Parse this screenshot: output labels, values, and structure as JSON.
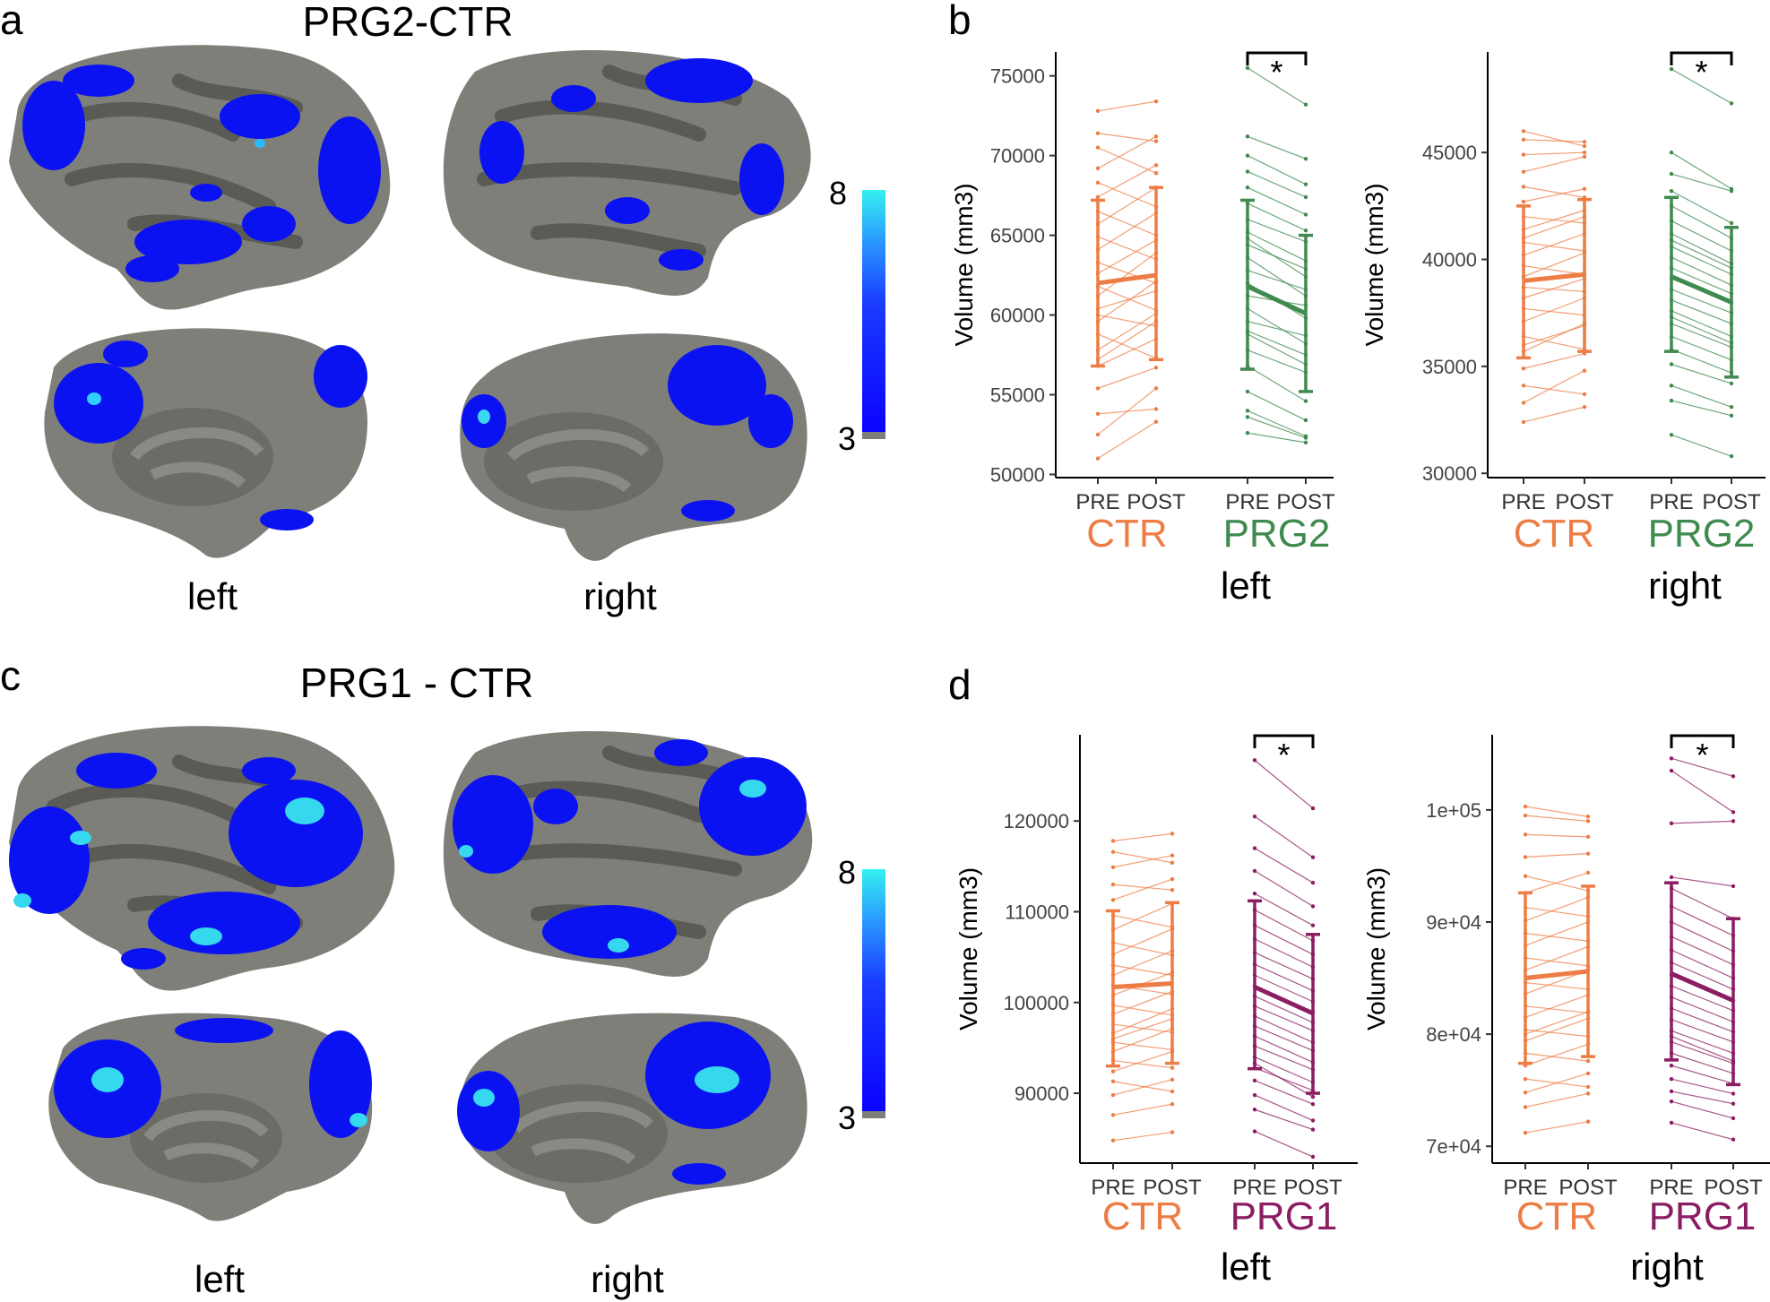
{
  "panels": {
    "a": {
      "letter": "a",
      "title": "PRG2-CTR",
      "hemisphere_labels": [
        "left",
        "right"
      ],
      "colorbar": {
        "max_label": "8",
        "min_label": "3"
      }
    },
    "b": {
      "letter": "b"
    },
    "c": {
      "letter": "c",
      "title": "PRG1 - CTR",
      "hemisphere_labels": [
        "left",
        "right"
      ],
      "colorbar": {
        "max_label": "8",
        "min_label": "3"
      }
    },
    "d": {
      "letter": "d"
    }
  },
  "colors": {
    "ctr": "#ED7D45",
    "prg2": "#3F8A4E",
    "prg1": "#8B1D62",
    "sulcus": "#5f5f5a",
    "gyrus": "#8a8a84",
    "activation": "#0a14f0",
    "activation_peak": "#35e0ee"
  },
  "chart_data": [
    {
      "id": "b-left",
      "type": "line",
      "ylabel": "Volume (mm3)",
      "yticks": [
        "50000",
        "55000",
        "60000",
        "65000",
        "70000",
        "75000"
      ],
      "ytick_values": [
        50000,
        55000,
        60000,
        65000,
        70000,
        75000
      ],
      "ylim": [
        49800,
        76500
      ],
      "x_timepoints": [
        "PRE",
        "POST"
      ],
      "hemisphere": "left",
      "significance": "*",
      "groups": [
        {
          "name": "CTR",
          "color": "#ED7D45",
          "mean": [
            62000,
            62500
          ],
          "sd_low": [
            56800,
            57200
          ],
          "sd_high": [
            67200,
            68000
          ],
          "subjects": [
            [
              51000,
              53300
            ],
            [
              52500,
              55400
            ],
            [
              53800,
              54100
            ],
            [
              55400,
              56700
            ],
            [
              56800,
              58500
            ],
            [
              57800,
              60100
            ],
            [
              58800,
              57300
            ],
            [
              59600,
              62100
            ],
            [
              60400,
              61500
            ],
            [
              61200,
              63900
            ],
            [
              61800,
              60300
            ],
            [
              62600,
              64700
            ],
            [
              63300,
              62000
            ],
            [
              64100,
              66400
            ],
            [
              64900,
              63500
            ],
            [
              65700,
              68000
            ],
            [
              66500,
              65000
            ],
            [
              67400,
              69400
            ],
            [
              68300,
              66800
            ],
            [
              69200,
              71200
            ],
            [
              70500,
              68900
            ],
            [
              71400,
              70900
            ],
            [
              72800,
              73400
            ],
            [
              60000,
              59300
            ],
            [
              57200,
              59600
            ]
          ]
        },
        {
          "name": "PRG2",
          "color": "#3F8A4E",
          "mean": [
            61800,
            60100
          ],
          "sd_low": [
            56600,
            55200
          ],
          "sd_high": [
            67200,
            65000
          ],
          "subjects": [
            [
              52600,
              52000
            ],
            [
              53600,
              52300
            ],
            [
              55200,
              53400
            ],
            [
              56800,
              54600
            ],
            [
              57800,
              56400
            ],
            [
              58800,
              56900
            ],
            [
              59600,
              58700
            ],
            [
              60400,
              58200
            ],
            [
              61200,
              60600
            ],
            [
              62000,
              59800
            ],
            [
              62800,
              61600
            ],
            [
              63600,
              61200
            ],
            [
              64400,
              62900
            ],
            [
              65200,
              63400
            ],
            [
              66000,
              64600
            ],
            [
              67000,
              65300
            ],
            [
              68000,
              66300
            ],
            [
              69000,
              67400
            ],
            [
              70000,
              68200
            ],
            [
              71200,
              69800
            ],
            [
              75500,
              73200
            ],
            [
              54000,
              52400
            ],
            [
              59000,
              57500
            ],
            [
              64800,
              62400
            ]
          ]
        }
      ]
    },
    {
      "id": "b-right",
      "type": "line",
      "ylabel": "Volume (mm3)",
      "yticks": [
        "30000",
        "35000",
        "40000",
        "45000"
      ],
      "ytick_values": [
        30000,
        35000,
        40000,
        45000
      ],
      "ylim": [
        29800,
        49700
      ],
      "x_timepoints": [
        "PRE",
        "POST"
      ],
      "hemisphere": "right",
      "significance": "*",
      "groups": [
        {
          "name": "CTR",
          "color": "#ED7D45",
          "mean": [
            39000,
            39300
          ],
          "sd_low": [
            35400,
            35700
          ],
          "sd_high": [
            42500,
            42800
          ],
          "subjects": [
            [
              32400,
              33100
            ],
            [
              33300,
              34800
            ],
            [
              34100,
              33700
            ],
            [
              34900,
              35600
            ],
            [
              35700,
              37000
            ],
            [
              36400,
              35800
            ],
            [
              37100,
              38200
            ],
            [
              37700,
              37400
            ],
            [
              38200,
              39100
            ],
            [
              38700,
              38500
            ],
            [
              39200,
              40300
            ],
            [
              39700,
              39300
            ],
            [
              40200,
              41200
            ],
            [
              40800,
              40400
            ],
            [
              41400,
              42300
            ],
            [
              42000,
              41700
            ],
            [
              42700,
              43300
            ],
            [
              43400,
              42900
            ],
            [
              44100,
              44800
            ],
            [
              44900,
              45000
            ],
            [
              45600,
              45500
            ],
            [
              46000,
              45300
            ],
            [
              36000,
              36900
            ],
            [
              41000,
              42000
            ]
          ]
        },
        {
          "name": "PRG2",
          "color": "#3F8A4E",
          "mean": [
            39200,
            38000
          ],
          "sd_low": [
            35700,
            34500
          ],
          "sd_high": [
            42900,
            41500
          ],
          "subjects": [
            [
              31800,
              30800
            ],
            [
              33400,
              32700
            ],
            [
              34100,
              33100
            ],
            [
              35100,
              34200
            ],
            [
              35800,
              34700
            ],
            [
              36400,
              35300
            ],
            [
              37000,
              35900
            ],
            [
              37600,
              36400
            ],
            [
              38100,
              37000
            ],
            [
              38600,
              37500
            ],
            [
              39100,
              38000
            ],
            [
              39600,
              38400
            ],
            [
              40100,
              38800
            ],
            [
              40600,
              39300
            ],
            [
              41200,
              39800
            ],
            [
              41800,
              40400
            ],
            [
              42500,
              41000
            ],
            [
              43200,
              41700
            ],
            [
              44000,
              43200
            ],
            [
              45000,
              43300
            ],
            [
              48900,
              47300
            ],
            [
              37300,
              36100
            ],
            [
              40900,
              39600
            ]
          ]
        }
      ]
    },
    {
      "id": "d-left",
      "type": "line",
      "ylabel": "Volume (mm3)",
      "yticks": [
        "90000",
        "100000",
        "110000",
        "120000"
      ],
      "ytick_values": [
        90000,
        100000,
        110000,
        120000
      ],
      "ylim": [
        82300,
        129500
      ],
      "x_timepoints": [
        "PRE",
        "POST"
      ],
      "hemisphere": "left",
      "significance": "*",
      "groups": [
        {
          "name": "CTR",
          "color": "#ED7D45",
          "mean": [
            101700,
            102100
          ],
          "sd_low": [
            93000,
            93300
          ],
          "sd_high": [
            110100,
            111000
          ],
          "subjects": [
            [
              84800,
              85700
            ],
            [
              87600,
              88800
            ],
            [
              89800,
              91500
            ],
            [
              91300,
              90200
            ],
            [
              92400,
              94600
            ],
            [
              93600,
              92800
            ],
            [
              94600,
              97100
            ],
            [
              95600,
              94800
            ],
            [
              96600,
              99300
            ],
            [
              97600,
              96700
            ],
            [
              98700,
              101200
            ],
            [
              99700,
              98600
            ],
            [
              100800,
              103300
            ],
            [
              101900,
              100900
            ],
            [
              103000,
              105700
            ],
            [
              104100,
              103000
            ],
            [
              105300,
              108100
            ],
            [
              106600,
              105200
            ],
            [
              108000,
              110900
            ],
            [
              109600,
              108300
            ],
            [
              111300,
              113600
            ],
            [
              113000,
              112400
            ],
            [
              114900,
              116200
            ],
            [
              116600,
              115400
            ],
            [
              117800,
              118600
            ],
            [
              96000,
              98200
            ]
          ]
        },
        {
          "name": "PRG1",
          "color": "#8B1D62",
          "mean": [
            101700,
            98800
          ],
          "sd_low": [
            92700,
            90000
          ],
          "sd_high": [
            111200,
            107500
          ],
          "subjects": [
            [
              85800,
              83000
            ],
            [
              88200,
              86000
            ],
            [
              89800,
              87000
            ],
            [
              91400,
              88800
            ],
            [
              92800,
              90300
            ],
            [
              94000,
              91200
            ],
            [
              95200,
              92600
            ],
            [
              96300,
              93400
            ],
            [
              97400,
              94700
            ],
            [
              98500,
              95600
            ],
            [
              99600,
              96900
            ],
            [
              100700,
              97800
            ],
            [
              101800,
              99000
            ],
            [
              103000,
              100100
            ],
            [
              104200,
              101300
            ],
            [
              105500,
              102600
            ],
            [
              107000,
              103900
            ],
            [
              108500,
              105300
            ],
            [
              110200,
              106800
            ],
            [
              112000,
              108500
            ],
            [
              114500,
              110600
            ],
            [
              117000,
              113200
            ],
            [
              120500,
              116000
            ],
            [
              126700,
              121400
            ],
            [
              93300,
              89600
            ]
          ]
        }
      ]
    },
    {
      "id": "d-right",
      "type": "line",
      "ylabel": "Volume (mm3)",
      "yticks": [
        "7e+04",
        "8e+04",
        "9e+04",
        "1e+05"
      ],
      "ytick_values": [
        70000,
        80000,
        90000,
        100000
      ],
      "ylim": [
        68500,
        106700
      ],
      "x_timepoints": [
        "PRE",
        "POST"
      ],
      "hemisphere": "right",
      "significance": "*",
      "groups": [
        {
          "name": "CTR",
          "color": "#ED7D45",
          "mean": [
            85000,
            85600
          ],
          "sd_low": [
            77400,
            78000
          ],
          "sd_high": [
            92600,
            93200
          ],
          "subjects": [
            [
              71200,
              72200
            ],
            [
              73500,
              74700
            ],
            [
              74800,
              76500
            ],
            [
              76000,
              75300
            ],
            [
              77200,
              79100
            ],
            [
              78300,
              77600
            ],
            [
              79400,
              81400
            ],
            [
              80400,
              79800
            ],
            [
              81500,
              83500
            ],
            [
              82500,
              81900
            ],
            [
              83600,
              85700
            ],
            [
              84600,
              84000
            ],
            [
              85700,
              87800
            ],
            [
              86800,
              86100
            ],
            [
              87900,
              90000
            ],
            [
              89000,
              88300
            ],
            [
              90100,
              92200
            ],
            [
              91300,
              90500
            ],
            [
              92600,
              94400
            ],
            [
              94100,
              92800
            ],
            [
              95800,
              96100
            ],
            [
              97800,
              97600
            ],
            [
              99500,
              99000
            ],
            [
              100300,
              99400
            ],
            [
              80000,
              82000
            ]
          ]
        },
        {
          "name": "PRG1",
          "color": "#8B1D62",
          "mean": [
            85400,
            83000
          ],
          "sd_low": [
            77700,
            75500
          ],
          "sd_high": [
            93500,
            90300
          ],
          "subjects": [
            [
              72100,
              70600
            ],
            [
              74000,
              72500
            ],
            [
              74900,
              73800
            ],
            [
              76000,
              74700
            ],
            [
              77200,
              75600
            ],
            [
              78300,
              76500
            ],
            [
              79300,
              77400
            ],
            [
              80300,
              78300
            ],
            [
              81300,
              79300
            ],
            [
              82300,
              80200
            ],
            [
              83300,
              81100
            ],
            [
              84300,
              82100
            ],
            [
              85300,
              83000
            ],
            [
              86400,
              84000
            ],
            [
              87500,
              85000
            ],
            [
              88700,
              86200
            ],
            [
              90000,
              87400
            ],
            [
              91400,
              88800
            ],
            [
              93000,
              90300
            ],
            [
              94000,
              93200
            ],
            [
              98800,
              99000
            ],
            [
              103500,
              99800
            ],
            [
              104600,
              103000
            ],
            [
              79800,
              77600
            ]
          ]
        }
      ]
    }
  ]
}
